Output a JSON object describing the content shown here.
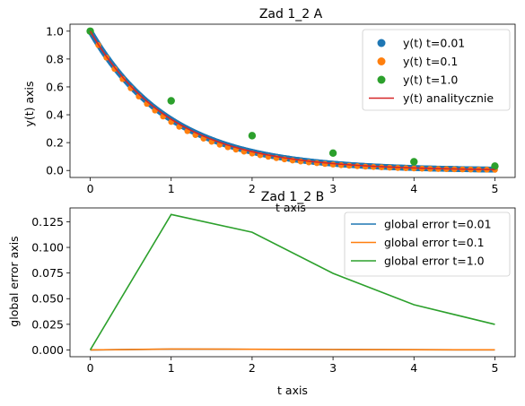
{
  "chart_data": [
    {
      "type": "scatter+line",
      "title": "Zad 1_2 A",
      "xlabel": "t axis",
      "ylabel": "y(t) axis",
      "xlim": [
        -0.25,
        5.25
      ],
      "ylim": [
        -0.05,
        1.05
      ],
      "xticks": [
        0,
        1,
        2,
        3,
        4,
        5
      ],
      "yticks": [
        0.0,
        0.2,
        0.4,
        0.6,
        0.8,
        1.0
      ],
      "xtick_labels": [
        "0",
        "1",
        "2",
        "3",
        "4",
        "5"
      ],
      "ytick_labels": [
        "0.0",
        "0.2",
        "0.4",
        "0.6",
        "0.8",
        "1.0"
      ],
      "legend_position": "top-right",
      "series": [
        {
          "name": "y(t) t=0.01",
          "kind": "scatter",
          "color": "#1f77b4",
          "dt": 0.01,
          "t_end": 5,
          "values": "y(t)=exp(-t) (Euler, dt=0.01)"
        },
        {
          "name": "y(t) t=0.1",
          "kind": "scatter",
          "color": "#ff7f0e",
          "dt": 0.1,
          "t_end": 5,
          "values": "y(t)=exp(-t) (Euler, dt=0.1)"
        },
        {
          "name": "y(t) t=1.0",
          "kind": "scatter",
          "color": "#2ca02c",
          "x": [
            0,
            1,
            2,
            3,
            4,
            5
          ],
          "y": [
            1.0,
            0.5,
            0.25,
            0.125,
            0.0625,
            0.03125
          ]
        },
        {
          "name": "y(t) analitycznie",
          "kind": "line",
          "color": "#d62728",
          "t_end": 5,
          "values": "exp(-t)"
        }
      ]
    },
    {
      "type": "line",
      "title": "Zad 1_2 B",
      "xlabel": "t axis",
      "ylabel": "global error axis",
      "xlim": [
        -0.25,
        5.25
      ],
      "ylim": [
        -0.0066,
        0.1385
      ],
      "xticks": [
        0,
        1,
        2,
        3,
        4,
        5
      ],
      "yticks": [
        0.0,
        0.025,
        0.05,
        0.075,
        0.1,
        0.125
      ],
      "xtick_labels": [
        "0",
        "1",
        "2",
        "3",
        "4",
        "5"
      ],
      "ytick_labels": [
        "0.000",
        "0.025",
        "0.050",
        "0.075",
        "0.100",
        "0.125"
      ],
      "legend_position": "top-right",
      "series": [
        {
          "name": "global error t=0.01",
          "color": "#1f77b4",
          "x": [
            0,
            1,
            2,
            3,
            4,
            5
          ],
          "y": [
            0.0,
            0.0008,
            0.0006,
            0.0004,
            0.0002,
            0.0001
          ]
        },
        {
          "name": "global error t=0.1",
          "color": "#ff7f0e",
          "x": [
            0,
            1,
            2,
            3,
            4,
            5
          ],
          "y": [
            0.0,
            0.0009,
            0.0007,
            0.0004,
            0.0002,
            0.0001
          ]
        },
        {
          "name": "global error t=1.0",
          "color": "#2ca02c",
          "x": [
            0,
            1,
            2,
            3,
            4,
            5
          ],
          "y": [
            0.0,
            0.1321,
            0.1148,
            0.0747,
            0.0441,
            0.0249
          ]
        }
      ]
    }
  ]
}
